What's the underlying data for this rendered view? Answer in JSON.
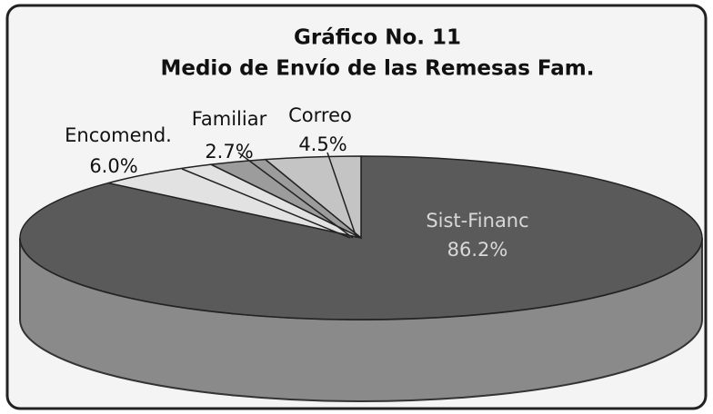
{
  "chart_data": {
    "type": "pie",
    "title": "Gráfico No. 11",
    "subtitle": "Medio de Envío de las Remesas Fam.",
    "categories": [
      "Sist-Financ",
      "Encomend.",
      "Familiar",
      "Correo"
    ],
    "values": [
      86.2,
      6.0,
      2.7,
      4.5
    ],
    "value_labels": [
      "86.2%",
      "6.0%",
      "2.7%",
      "4.5%"
    ],
    "colors": [
      "#5a5a5a",
      "#e2e2e2",
      "#9c9c9c",
      "#c4c4c4"
    ]
  }
}
